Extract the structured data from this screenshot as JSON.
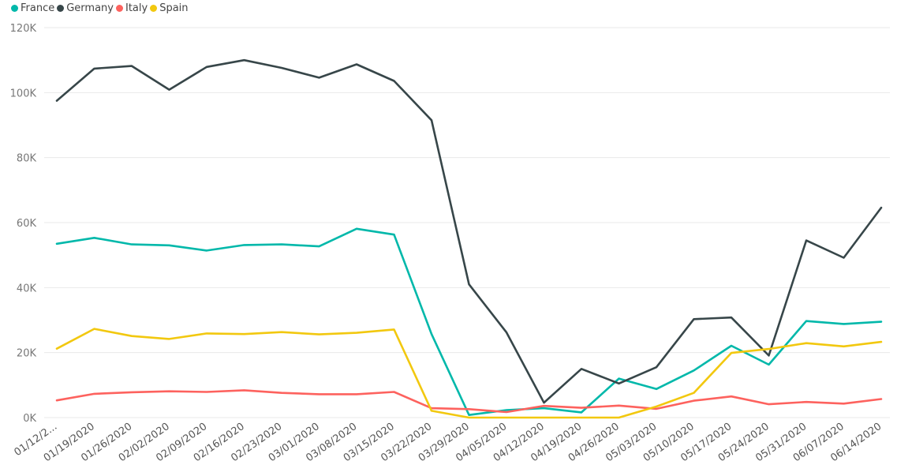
{
  "chart_data": {
    "type": "line",
    "title": "",
    "xlabel": "",
    "ylabel": "",
    "categories": [
      "01/12/2...",
      "01/19/2020",
      "01/26/2020",
      "02/02/2020",
      "02/09/2020",
      "02/16/2020",
      "02/23/2020",
      "03/01/2020",
      "03/08/2020",
      "03/15/2020",
      "03/22/2020",
      "03/29/2020",
      "04/05/2020",
      "04/12/2020",
      "04/19/2020",
      "04/26/2020",
      "05/03/2020",
      "05/10/2020",
      "05/17/2020",
      "05/24/2020",
      "05/31/2020",
      "06/07/2020",
      "06/14/2020"
    ],
    "ylim": [
      0,
      120000
    ],
    "yticks": [
      0,
      20000,
      40000,
      60000,
      80000,
      100000,
      120000
    ],
    "ytick_labels": [
      "0K",
      "20K",
      "40K",
      "60K",
      "80K",
      "100K",
      "120K"
    ],
    "grid": true,
    "legend": "top-left",
    "series": [
      {
        "name": "France",
        "color": "#01B8AA",
        "values": [
          53500,
          55300,
          53300,
          53000,
          51400,
          53100,
          53300,
          52700,
          58100,
          56300,
          25700,
          800,
          2300,
          2900,
          1600,
          12000,
          8800,
          14500,
          22100,
          16300,
          29700,
          28800,
          29500
        ]
      },
      {
        "name": "Germany",
        "color": "#374649",
        "values": [
          97500,
          107400,
          108200,
          100900,
          107900,
          110000,
          107600,
          104600,
          108700,
          103600,
          91500,
          41000,
          26200,
          4600,
          15000,
          10500,
          15500,
          30300,
          30800,
          19100,
          54500,
          49200,
          64600
        ]
      },
      {
        "name": "Italy",
        "color": "#FD625E",
        "values": [
          5300,
          7300,
          7800,
          8100,
          7900,
          8400,
          7600,
          7200,
          7200,
          7900,
          2900,
          2600,
          1700,
          3600,
          3000,
          3700,
          2700,
          5200,
          6500,
          4100,
          4800,
          4300,
          5700
        ]
      },
      {
        "name": "Spain",
        "color": "#F2C80F",
        "values": [
          21200,
          27300,
          25100,
          24200,
          25900,
          25700,
          26300,
          25600,
          26100,
          27100,
          2100,
          0,
          0,
          0,
          0,
          0,
          3400,
          7600,
          19900,
          21100,
          22900,
          21900,
          23300
        ]
      }
    ]
  }
}
